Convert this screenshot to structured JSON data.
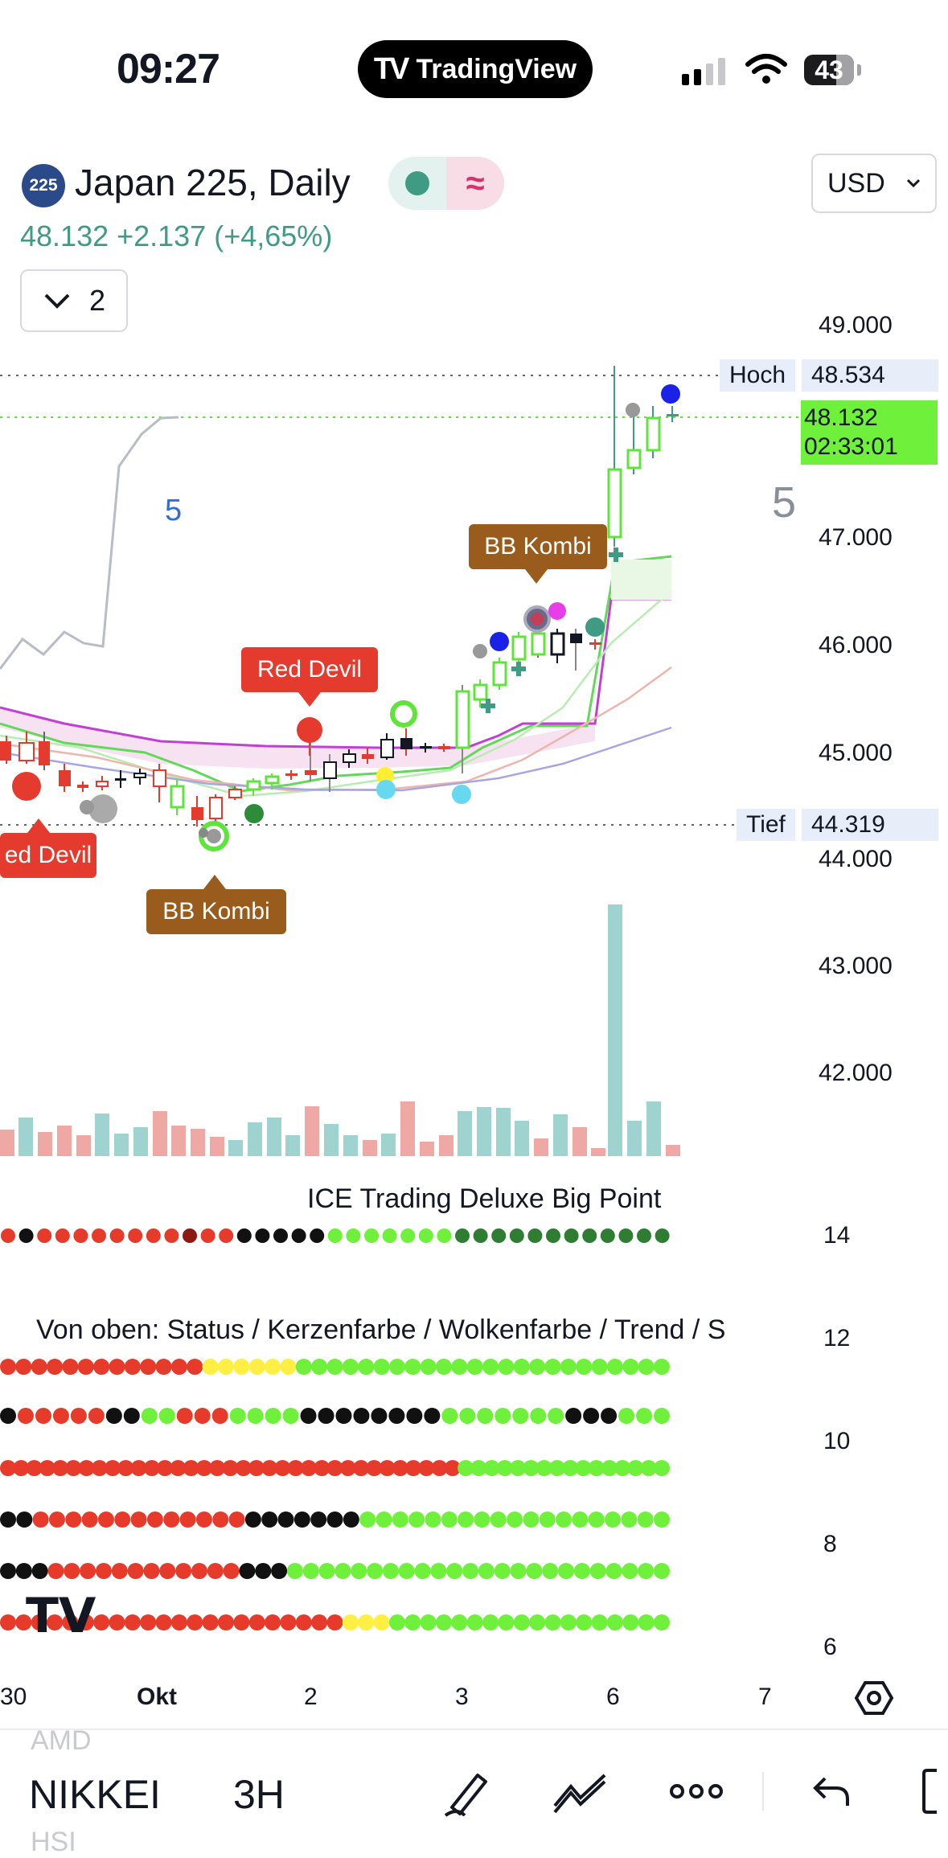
{
  "status_bar": {
    "time": "09:27",
    "app_pill": "TradingView",
    "battery": "43"
  },
  "header": {
    "symbol_badge": "225",
    "title": "Japan 225, Daily",
    "price_line": "48.132  +2.137 (+4,65%)",
    "collapse_count": "2",
    "currency": "USD",
    "colors": {
      "up": "#3f9b84",
      "badge": "#2a4a8a",
      "brand_pill": "#000000"
    }
  },
  "price_axis": [
    "49.000",
    "47.000",
    "46.000",
    "45.000",
    "44.000",
    "43.000",
    "42.000"
  ],
  "tags": {
    "high_label": "Hoch",
    "high_value": "48.534",
    "low_label": "Tief",
    "low_value": "44.319",
    "last_price": "48.132",
    "countdown": "02:33:01"
  },
  "chart_labels": {
    "number_right": "5",
    "number_left": "5"
  },
  "callouts": {
    "bb_kombi_top": "BB Kombi",
    "red_devil_mid": "Red Devil",
    "red_devil_left": "ed Devil",
    "bb_kombi_bottom": "BB Kombi"
  },
  "oscillator": {
    "title": "ICE Trading Deluxe Big Point",
    "status_title": "Von oben: Status / Kerzenfarbe / Wolkenfarbe / Trend / S",
    "scale": [
      "14",
      "12",
      "10",
      "8",
      "6"
    ]
  },
  "time_axis": [
    "30",
    "Okt",
    "2",
    "3",
    "6",
    "7"
  ],
  "bottom_bar": {
    "ghost_top": "AMD",
    "symbol": "NIKKEI",
    "interval": "3H",
    "ghost_bottom": "HSI"
  }
}
